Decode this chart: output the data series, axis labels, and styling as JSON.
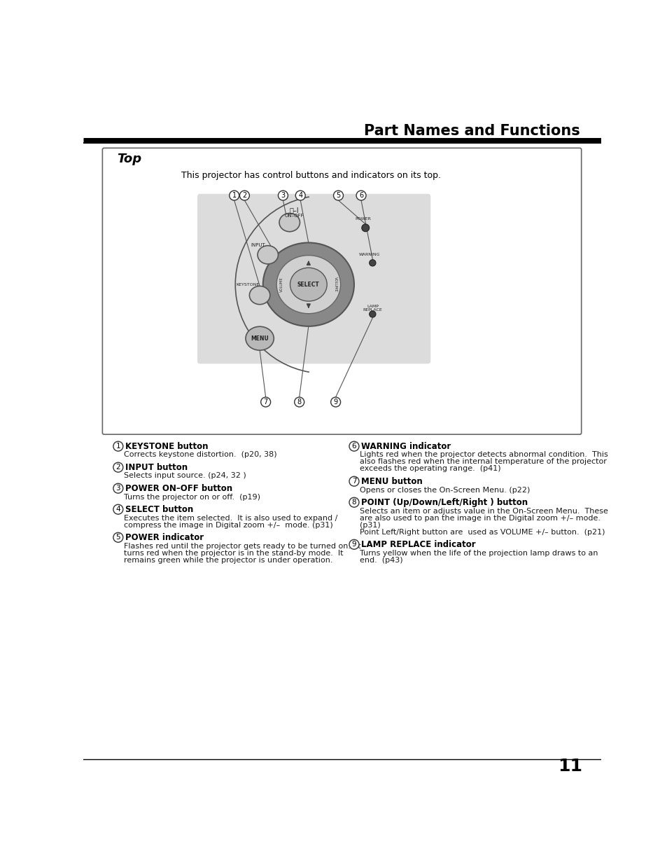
{
  "title": "Part Names and Functions",
  "page_number": "11",
  "section_title": "Top",
  "section_subtitle": "This projector has control buttons and indicators on its top.",
  "bg_color": "#ffffff",
  "items_left": [
    {
      "num": "1",
      "heading": "KEYSTONE button",
      "body": "Corrects keystone distortion.  (p20, 38)"
    },
    {
      "num": "2",
      "heading": "INPUT button",
      "body": "Selects input source. (p24, 32 )"
    },
    {
      "num": "3",
      "heading": "POWER ON–OFF button",
      "body": "Turns the projector on or off.  (p19)"
    },
    {
      "num": "4",
      "heading": "SELECT button",
      "body": "Executes the item selected.  It is also used to expand /\ncompress the image in Digital zoom +/–  mode. (p31)"
    },
    {
      "num": "5",
      "heading": "POWER indicator",
      "body": "Flashes red until the projector gets ready to be turned on.  It\nturns red when the projector is in the stand-by mode.  It\nremains green while the projector is under operation."
    }
  ],
  "items_right": [
    {
      "num": "6",
      "heading": "WARNING indicator",
      "body": "Lights red when the projector detects abnormal condition.  This\nalso flashes red when the internal temperature of the projector\nexceeds the operating range.  (p41)"
    },
    {
      "num": "7",
      "heading": "MENU button",
      "body": "Opens or closes the On-Screen Menu. (p22)"
    },
    {
      "num": "8",
      "heading": "POINT (Up/Down/Left/Right ) button",
      "body": "Selects an item or adjusts value in the On-Screen Menu.  These\nare also used to pan the image in the Digital zoom +/– mode.\n(p31)\nPoint Left/Right button are  used as VOLUME +/– button.  (p21)"
    },
    {
      "num": "9",
      "heading": "LAMP REPLACE indicator",
      "body": "Turns yellow when the life of the projection lamp draws to an\nend.  (p43)"
    }
  ]
}
